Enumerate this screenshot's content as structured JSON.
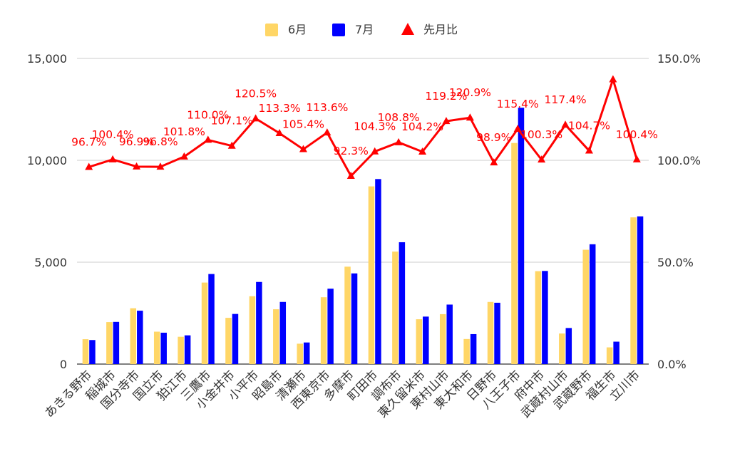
{
  "chart_data": {
    "type": "bar",
    "categories": [
      "あきる野市",
      "稲城市",
      "国分寺市",
      "国立市",
      "狛江市",
      "三鷹市",
      "小金井市",
      "小平市",
      "昭島市",
      "清瀬市",
      "西東京市",
      "多摩市",
      "町田市",
      "調布市",
      "東久留米市",
      "東村山市",
      "東大和市",
      "日野市",
      "八王子市",
      "府中市",
      "武蔵村山市",
      "武蔵野市",
      "福生市",
      "立川市"
    ],
    "series": [
      {
        "name": "6月",
        "type": "bar",
        "axis": "left",
        "color": "#ffd666",
        "values": [
          1220,
          2060,
          2740,
          1590,
          1340,
          4000,
          2270,
          3330,
          2690,
          1000,
          3280,
          4780,
          8720,
          5520,
          2200,
          2450,
          1230,
          3050,
          10850,
          4560,
          1500,
          5610,
          820,
          7200
        ]
      },
      {
        "name": "7月",
        "type": "bar",
        "axis": "left",
        "color": "#0000ff",
        "values": [
          1180,
          2070,
          2620,
          1540,
          1410,
          4420,
          2460,
          4030,
          3050,
          1060,
          3700,
          4450,
          9080,
          5980,
          2330,
          2920,
          1470,
          3010,
          12580,
          4570,
          1770,
          5880,
          1100,
          7250
        ]
      },
      {
        "name": "先月比",
        "type": "line",
        "axis": "right",
        "color": "#ff0000",
        "values": [
          96.7,
          100.4,
          96.9,
          96.8,
          101.8,
          110.0,
          107.1,
          120.5,
          113.3,
          105.4,
          113.6,
          92.3,
          104.3,
          108.8,
          104.2,
          119.2,
          120.9,
          98.9,
          115.4,
          100.3,
          117.4,
          104.7,
          139.7,
          100.4
        ],
        "data_labels": [
          "96.7%",
          "100.4%",
          "96.9%",
          "96.8%",
          "101.8%",
          "110.0%",
          "107.1%",
          "120.5%",
          "113.3%",
          "105.4%",
          "113.6%",
          "92.3%",
          "104.3%",
          "108.8%",
          "104.2%",
          "119.2%",
          "120.9%",
          "98.9%",
          "115.4%",
          "100.3%",
          "117.4%",
          "104.7%",
          "",
          "100.4%"
        ]
      }
    ],
    "y_left": {
      "ticks": [
        "0",
        "5,000",
        "10,000",
        "15,000"
      ],
      "ylim": [
        0,
        15000
      ]
    },
    "y_right": {
      "ticks": [
        "0.0%",
        "50.0%",
        "100.0%",
        "150.0%"
      ],
      "ylim": [
        0,
        150
      ]
    },
    "grid": true,
    "legend_position": "top"
  }
}
